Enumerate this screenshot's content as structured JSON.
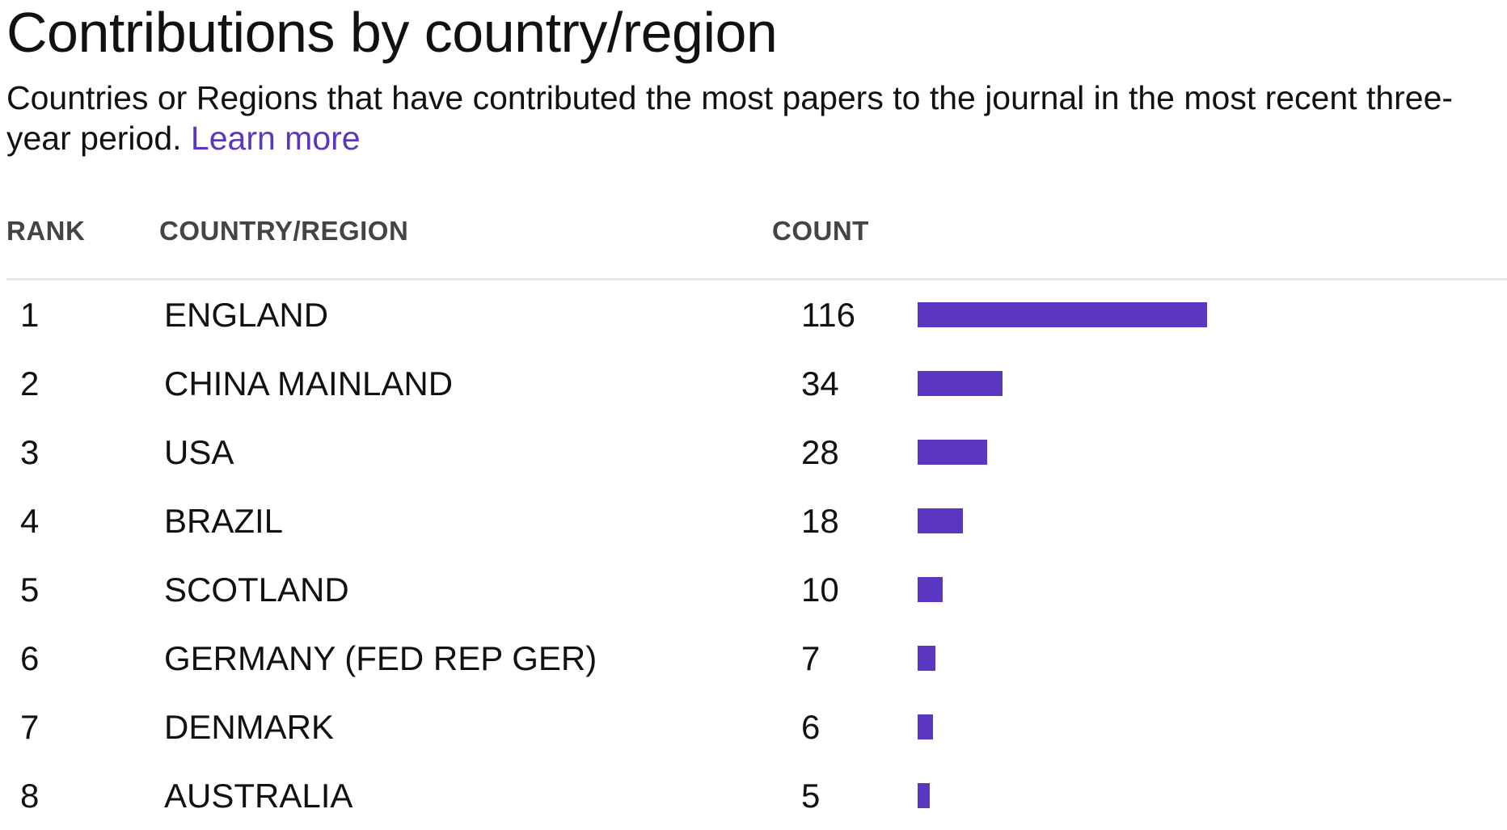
{
  "page": {
    "title": "Contributions by country/region",
    "subtitle": "Countries or Regions that have contributed the most papers to the journal in the most recent three-year period.",
    "learn_more": "Learn more"
  },
  "colors": {
    "bar": "#5a37be",
    "link": "#5a37be",
    "rule": "#e6e6e6",
    "header_text": "#444444"
  },
  "chart_data": {
    "type": "table",
    "columns": [
      "RANK",
      "COUNTRY/REGION",
      "COUNT"
    ],
    "rows": [
      {
        "rank": "1",
        "country": "ENGLAND",
        "count": 116
      },
      {
        "rank": "2",
        "country": "CHINA MAINLAND",
        "count": 34
      },
      {
        "rank": "3",
        "country": "USA",
        "count": 28
      },
      {
        "rank": "4",
        "country": "BRAZIL",
        "count": 18
      },
      {
        "rank": "5",
        "country": "SCOTLAND",
        "count": 10
      },
      {
        "rank": "6",
        "country": "GERMANY (FED REP GER)",
        "count": 7
      },
      {
        "rank": "7",
        "country": "DENMARK",
        "count": 6
      },
      {
        "rank": "8",
        "country": "AUSTRALIA",
        "count": 5
      }
    ],
    "bar_max": 116
  }
}
